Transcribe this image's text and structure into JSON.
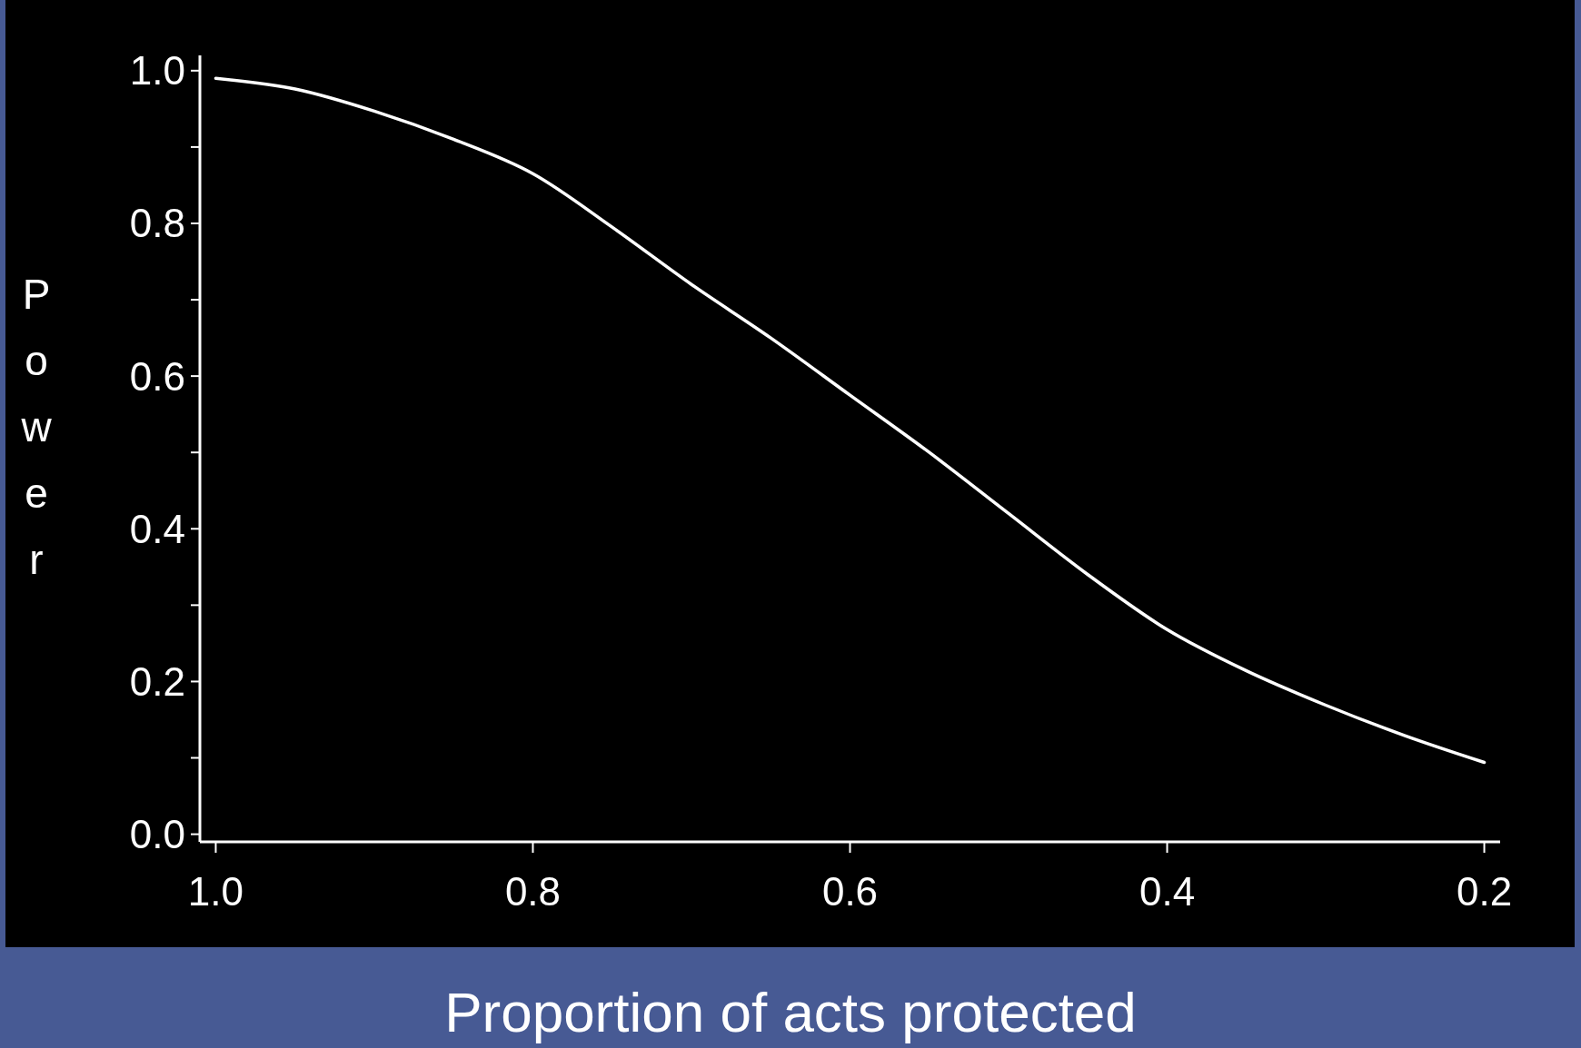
{
  "chart_data": {
    "type": "line",
    "xlabel": "Proportion of acts protected",
    "ylabel": "Power",
    "x": [
      1.0,
      0.95,
      0.9,
      0.85,
      0.8,
      0.75,
      0.7,
      0.65,
      0.6,
      0.55,
      0.5,
      0.45,
      0.4,
      0.35,
      0.3,
      0.25,
      0.2
    ],
    "series": [
      {
        "color": "#ffffff",
        "values": [
          0.99,
          0.976,
          0.947,
          0.91,
          0.865,
          0.795,
          0.72,
          0.65,
          0.575,
          0.5,
          0.42,
          0.34,
          0.268,
          0.214,
          0.169,
          0.129,
          0.094
        ]
      }
    ],
    "xlim": [
      1.01,
      0.19
    ],
    "xticks": [
      {
        "value": 1.0,
        "label": "1.0"
      },
      0.8,
      0.6,
      0.4,
      0.2
    ],
    "ylim": [
      -0.01,
      1.02
    ],
    "yticks": [
      {
        "value": 0,
        "label": "0.0"
      },
      {
        "value": 0.1,
        "label": null
      },
      0.2,
      {
        "value": 0.3,
        "label": null
      },
      0.4,
      {
        "value": 0.5,
        "label": null
      },
      0.6,
      {
        "value": 0.7,
        "label": null
      },
      0.8,
      {
        "value": 0.9,
        "label": null
      },
      {
        "value": 1,
        "label": "1.0"
      }
    ],
    "grid": false,
    "marker": "none",
    "line_style": "solid"
  }
}
